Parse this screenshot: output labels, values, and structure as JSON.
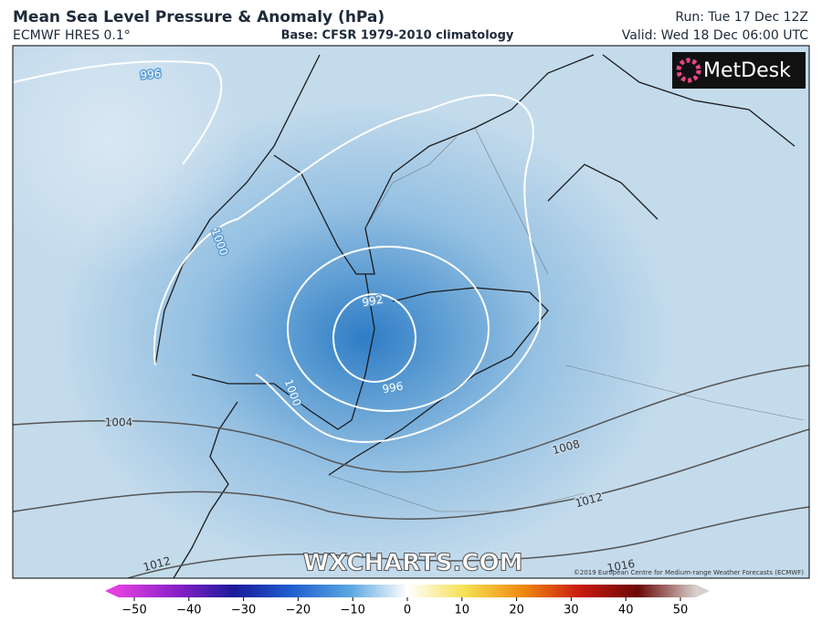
{
  "header": {
    "title": "Mean Sea Level Pressure & Anomaly (hPa)",
    "model": "ECMWF HRES 0.1°",
    "base": "Base: CFSR 1979-2010 climatology",
    "run": "Run: Tue 17 Dec 12Z",
    "valid": "Valid: Wed 18 Dec 06:00 UTC"
  },
  "logo": "MetDesk",
  "watermark": "WXCHARTS.COM",
  "copyright": "©2019 European Centre for Medium-range Weather Forecasts (ECMWF)",
  "contour_labels": [
    "996",
    "1000",
    "992",
    "1000",
    "996",
    "1004",
    "1008",
    "1012",
    "1012",
    "1016"
  ],
  "colorbar": {
    "ticks": [
      "−50",
      "−40",
      "−30",
      "−20",
      "−10",
      "0",
      "10",
      "20",
      "30",
      "40",
      "50"
    ]
  }
}
